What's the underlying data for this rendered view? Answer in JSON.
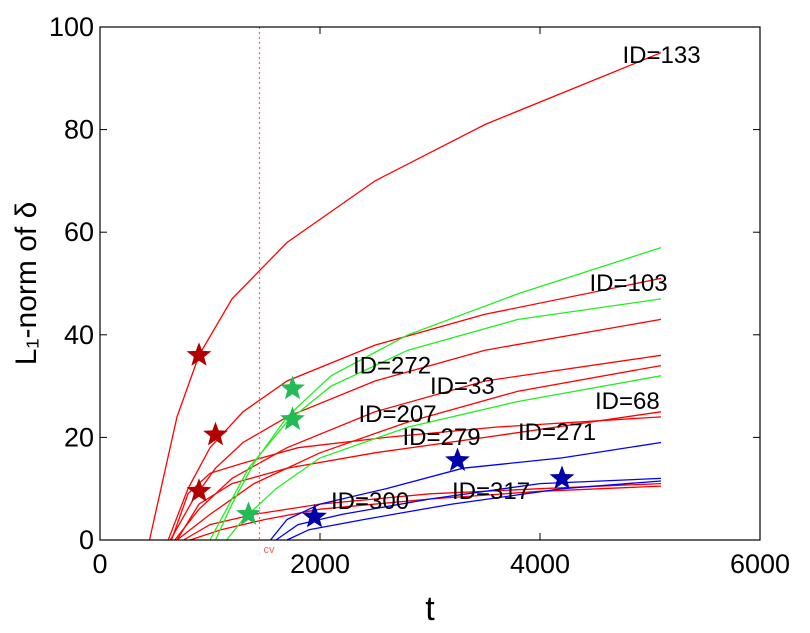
{
  "chart_data": {
    "type": "line",
    "xlabel": "t",
    "ylabel": "L₁-norm of δ",
    "xlim": [
      0,
      6000
    ],
    "ylim": [
      0,
      100
    ],
    "xticks": [
      0,
      2000,
      4000,
      6000
    ],
    "yticks": [
      0,
      20,
      40,
      60,
      80,
      100
    ],
    "grid": false,
    "colors": {
      "red": "#ff0000",
      "green": "#22ee22",
      "blue": "#0000ff",
      "star_red": "#b00000",
      "star_green": "#22bb55",
      "star_blue": "#0000aa",
      "cv_line": "#ff6060"
    },
    "cv": {
      "label": "cv",
      "x": 1450
    },
    "series": [
      {
        "color": "red",
        "points": [
          [
            450,
            0
          ],
          [
            700,
            24
          ],
          [
            900,
            36
          ],
          [
            1200,
            47
          ],
          [
            1700,
            58
          ],
          [
            2500,
            70
          ],
          [
            3500,
            81
          ],
          [
            5100,
            95
          ]
        ]
      },
      {
        "color": "red",
        "points": [
          [
            620,
            0
          ],
          [
            800,
            10
          ],
          [
            1000,
            18
          ],
          [
            1300,
            25
          ],
          [
            1700,
            31
          ],
          [
            2500,
            38
          ],
          [
            3500,
            44
          ],
          [
            5100,
            51
          ]
        ]
      },
      {
        "color": "red",
        "points": [
          [
            640,
            0
          ],
          [
            850,
            8
          ],
          [
            1050,
            14
          ],
          [
            1300,
            19
          ],
          [
            1700,
            24
          ],
          [
            2500,
            31
          ],
          [
            3500,
            37
          ],
          [
            5100,
            43
          ]
        ]
      },
      {
        "color": "red",
        "points": [
          [
            680,
            0
          ],
          [
            900,
            6
          ],
          [
            1200,
            12
          ],
          [
            1700,
            18
          ],
          [
            2500,
            25
          ],
          [
            3500,
            31
          ],
          [
            5100,
            36
          ]
        ]
      },
      {
        "color": "red",
        "points": [
          [
            700,
            0
          ],
          [
            1000,
            5
          ],
          [
            1400,
            11
          ],
          [
            2000,
            17
          ],
          [
            2800,
            23
          ],
          [
            3800,
            29
          ],
          [
            5100,
            34
          ]
        ]
      },
      {
        "color": "red",
        "points": [
          [
            650,
            0
          ],
          [
            800,
            9
          ],
          [
            1000,
            13
          ],
          [
            1300,
            15
          ],
          [
            1800,
            18
          ],
          [
            2600,
            20
          ],
          [
            3600,
            22
          ],
          [
            5100,
            24
          ]
        ]
      },
      {
        "color": "red",
        "points": [
          [
            700,
            0
          ],
          [
            900,
            7
          ],
          [
            1200,
            11
          ],
          [
            1700,
            14
          ],
          [
            2500,
            17
          ],
          [
            3500,
            20
          ],
          [
            5100,
            25
          ]
        ]
      },
      {
        "color": "red",
        "points": [
          [
            760,
            0
          ],
          [
            1000,
            3
          ],
          [
            1400,
            5
          ],
          [
            2000,
            7
          ],
          [
            3000,
            9
          ],
          [
            4000,
            10
          ],
          [
            5100,
            11
          ]
        ]
      },
      {
        "color": "red",
        "points": [
          [
            820,
            0
          ],
          [
            1100,
            2
          ],
          [
            1500,
            4
          ],
          [
            2000,
            6
          ],
          [
            3000,
            8
          ],
          [
            4000,
            9.5
          ],
          [
            5100,
            10.5
          ]
        ]
      },
      {
        "color": "green",
        "points": [
          [
            1050,
            0
          ],
          [
            1200,
            7
          ],
          [
            1400,
            15
          ],
          [
            1700,
            24
          ],
          [
            2100,
            32
          ],
          [
            2800,
            40
          ],
          [
            3800,
            48
          ],
          [
            5100,
            57
          ]
        ]
      },
      {
        "color": "green",
        "points": [
          [
            1000,
            0
          ],
          [
            1150,
            6
          ],
          [
            1350,
            14
          ],
          [
            1700,
            23
          ],
          [
            2100,
            30
          ],
          [
            2800,
            37
          ],
          [
            3800,
            43
          ],
          [
            5100,
            47
          ]
        ]
      },
      {
        "color": "green",
        "points": [
          [
            1150,
            0
          ],
          [
            1300,
            4
          ],
          [
            1600,
            10
          ],
          [
            2000,
            16
          ],
          [
            2800,
            22
          ],
          [
            3800,
            27
          ],
          [
            5100,
            32
          ]
        ]
      },
      {
        "color": "blue",
        "points": [
          [
            1550,
            0
          ],
          [
            1700,
            4
          ],
          [
            2000,
            7
          ],
          [
            2600,
            10
          ],
          [
            3300,
            14
          ],
          [
            4200,
            16
          ],
          [
            5100,
            19
          ]
        ]
      },
      {
        "color": "blue",
        "points": [
          [
            1600,
            0
          ],
          [
            1800,
            3
          ],
          [
            2200,
            5
          ],
          [
            3000,
            8
          ],
          [
            4000,
            11
          ],
          [
            5100,
            12
          ]
        ]
      },
      {
        "color": "blue",
        "points": [
          [
            1700,
            0
          ],
          [
            1900,
            2
          ],
          [
            2400,
            4
          ],
          [
            3200,
            7
          ],
          [
            4200,
            10
          ],
          [
            5100,
            11.5
          ]
        ]
      }
    ],
    "markers": [
      {
        "x": 900,
        "y": 36,
        "color": "star_red"
      },
      {
        "x": 1050,
        "y": 20.5,
        "color": "star_red"
      },
      {
        "x": 900,
        "y": 9.5,
        "color": "star_red"
      },
      {
        "x": 1750,
        "y": 29.5,
        "color": "star_green"
      },
      {
        "x": 1750,
        "y": 23.5,
        "color": "star_green"
      },
      {
        "x": 1350,
        "y": 5,
        "color": "star_green"
      },
      {
        "x": 3250,
        "y": 15.5,
        "color": "star_blue"
      },
      {
        "x": 4200,
        "y": 12,
        "color": "star_blue"
      },
      {
        "x": 1950,
        "y": 4.5,
        "color": "star_blue"
      }
    ],
    "annotations": [
      {
        "text": "ID=133",
        "x": 4750,
        "y": 93
      },
      {
        "text": "ID=103",
        "x": 4450,
        "y": 48.5
      },
      {
        "text": "ID=272",
        "x": 2300,
        "y": 32.5
      },
      {
        "text": "ID=33",
        "x": 3000,
        "y": 28.5
      },
      {
        "text": "ID=68",
        "x": 4500,
        "y": 25.5
      },
      {
        "text": "ID=207",
        "x": 2350,
        "y": 23
      },
      {
        "text": "ID=279",
        "x": 2750,
        "y": 18.5
      },
      {
        "text": "ID=271",
        "x": 3800,
        "y": 19.5
      },
      {
        "text": "ID=300",
        "x": 2100,
        "y": 6
      },
      {
        "text": "ID=317",
        "x": 3200,
        "y": 8
      }
    ]
  }
}
